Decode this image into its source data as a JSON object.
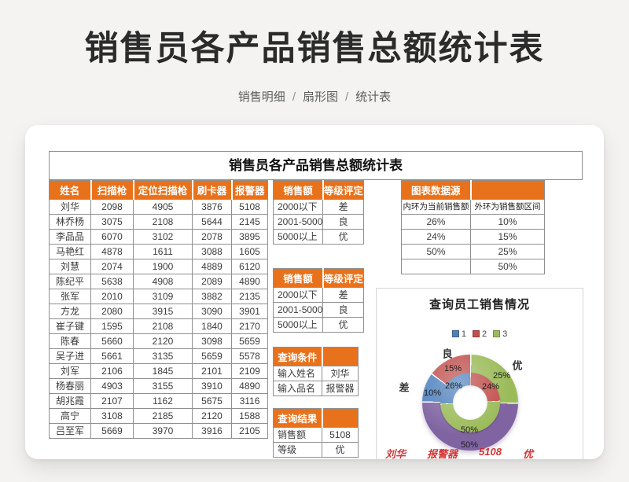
{
  "page": {
    "title": "销售员各产品销售总额统计表",
    "breadcrumb": {
      "items": [
        "销售明细",
        "扇形图",
        "统计表"
      ],
      "separator": "/"
    }
  },
  "colors": {
    "accent_orange": "#e8721c",
    "series_blue": "#4f81bd",
    "series_red": "#c0504d",
    "series_green": "#9bbb59",
    "series_purple": "#8064a2",
    "note_red": "#d01f1f"
  },
  "sheet": {
    "title": "销售员各产品销售总额统计表",
    "sales_table": {
      "headers": [
        "姓名",
        "扫描枪",
        "定位扫描枪",
        "刷卡器",
        "报警器"
      ],
      "rows": [
        [
          "刘华",
          "2098",
          "4905",
          "3876",
          "5108"
        ],
        [
          "林乔杨",
          "3075",
          "2108",
          "5644",
          "2145"
        ],
        [
          "李品品",
          "6070",
          "3102",
          "2078",
          "3895"
        ],
        [
          "马艳红",
          "4878",
          "1611",
          "3088",
          "1605"
        ],
        [
          "刘慧",
          "2074",
          "1900",
          "4889",
          "6120"
        ],
        [
          "陈纪平",
          "5638",
          "4908",
          "2089",
          "4890"
        ],
        [
          "张军",
          "2010",
          "3109",
          "3882",
          "2135"
        ],
        [
          "方龙",
          "2080",
          "3915",
          "3090",
          "3901"
        ],
        [
          "崔子键",
          "1595",
          "2108",
          "1840",
          "2170"
        ],
        [
          "陈春",
          "5660",
          "2120",
          "3098",
          "5659"
        ],
        [
          "吴子进",
          "5661",
          "3135",
          "5659",
          "5578"
        ],
        [
          "刘军",
          "2106",
          "1845",
          "2101",
          "2109"
        ],
        [
          "杨春丽",
          "4903",
          "3155",
          "3910",
          "4890"
        ],
        [
          "胡兆霞",
          "2107",
          "1162",
          "5675",
          "3116"
        ],
        [
          "高宁",
          "3108",
          "2185",
          "2120",
          "1588"
        ],
        [
          "吕至军",
          "5669",
          "3970",
          "3916",
          "2105"
        ]
      ]
    },
    "grade_tables": [
      {
        "headers": [
          "销售额",
          "等级评定"
        ],
        "rows": [
          [
            "2000以下",
            "差"
          ],
          [
            "2001-5000",
            "良"
          ],
          [
            "5000以上",
            "优"
          ]
        ]
      },
      {
        "headers": [
          "销售额",
          "等级评定"
        ],
        "rows": [
          [
            "2000以下",
            "差"
          ],
          [
            "2001-5000",
            "良"
          ],
          [
            "5000以上",
            "优"
          ]
        ]
      }
    ],
    "query_condition": {
      "title": "查询条件",
      "rows": [
        [
          "输入姓名",
          "刘华"
        ],
        [
          "输入品名",
          "报警器"
        ]
      ]
    },
    "query_result": {
      "title": "查询结果",
      "rows": [
        [
          "销售额",
          "5108"
        ],
        [
          "等级",
          "优"
        ]
      ]
    },
    "chart_source": {
      "title": "图表数据源",
      "col_headers": [
        "内环为当前销售额",
        "外环为销售额区间"
      ],
      "rows": [
        [
          "26%",
          "10%"
        ],
        [
          "24%",
          "15%"
        ],
        [
          "50%",
          "25%"
        ],
        [
          "",
          "50%"
        ]
      ]
    },
    "red_note_fragments": [
      "刘华",
      "报警器",
      "5108",
      "优"
    ]
  },
  "chart_data": {
    "type": "pie",
    "subtype": "doughnut",
    "title": "查询员工销售情况",
    "legend_position": "top",
    "legend_entries": [
      {
        "label": "1",
        "color": "#4f81bd"
      },
      {
        "label": "2",
        "color": "#c0504d"
      },
      {
        "label": "3",
        "color": "#9bbb59"
      }
    ],
    "rings": [
      {
        "name": "内环为当前销售额",
        "slices": [
          {
            "label": "24%",
            "value": 24,
            "color": "#c0504d",
            "annotation": ""
          },
          {
            "label": "50%",
            "value": 50,
            "color": "#9bbb59",
            "annotation": ""
          },
          {
            "label": "26%",
            "value": 26,
            "color": "#4f81bd",
            "annotation": ""
          }
        ]
      },
      {
        "name": "外环为销售额区间",
        "slices": [
          {
            "label": "25%",
            "value": 25,
            "color": "#9bbb59",
            "annotation": "优"
          },
          {
            "label": "50%",
            "value": 50,
            "color": "#8064a2",
            "annotation": ""
          },
          {
            "label": "10%",
            "value": 10,
            "color": "#4f81bd",
            "annotation": "差"
          },
          {
            "label": "15%",
            "value": 15,
            "color": "#c0504d",
            "annotation": "良"
          }
        ]
      }
    ]
  }
}
